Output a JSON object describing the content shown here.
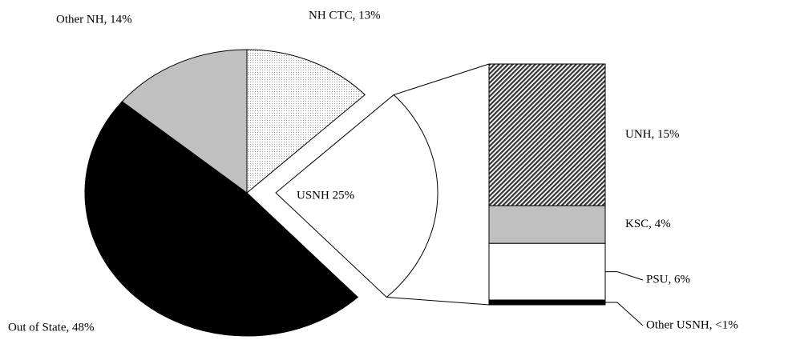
{
  "chart_data": {
    "type": "pie-of-bar",
    "labels": [
      "NH CTC, 13%",
      "USNH 25%",
      "Out of State, 48%",
      "Other NH, 14%"
    ],
    "values": [
      13,
      25,
      48,
      14
    ],
    "colors": [
      "url(#dots)",
      "#ffffff",
      "#000000",
      "#c0c0c0"
    ],
    "breakdown": {
      "labels": [
        "UNH, 15%",
        "KSC, 4%",
        "PSU, 6%",
        "Other USNH, <1%"
      ],
      "values": [
        15,
        4,
        6,
        0.5
      ],
      "colors": [
        "url(#hatch)",
        "#c0c0c0",
        "#ffffff",
        "#000000"
      ]
    }
  }
}
